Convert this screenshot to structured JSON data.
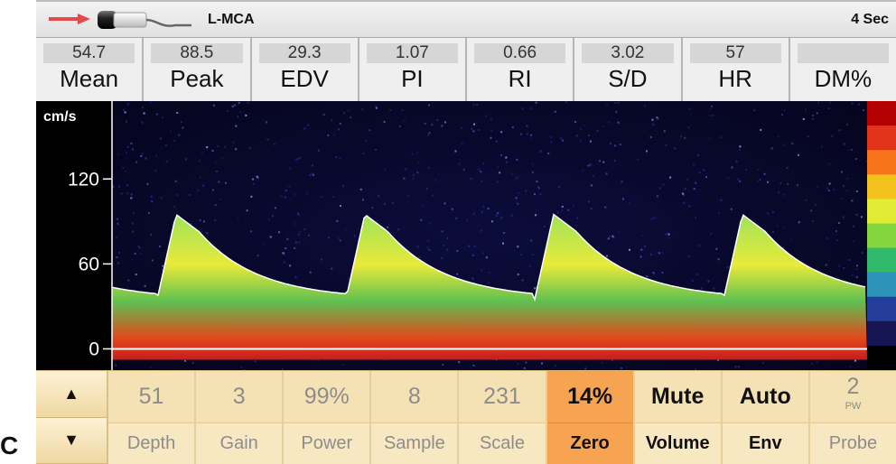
{
  "figure_label": "C",
  "header": {
    "vessel": "L-MCA",
    "sweep": "4 Sec",
    "arrow_color": "#e04a4a"
  },
  "measurements": [
    {
      "value": "54.7",
      "label": "Mean"
    },
    {
      "value": "88.5",
      "label": "Peak"
    },
    {
      "value": "29.3",
      "label": "EDV"
    },
    {
      "value": "1.07",
      "label": "PI"
    },
    {
      "value": "0.66",
      "label": "RI"
    },
    {
      "value": "3.02",
      "label": "S/D"
    },
    {
      "value": "57",
      "label": "HR"
    },
    {
      "value": "",
      "label": "DM%"
    }
  ],
  "spectrum": {
    "unit_label": "cm/s",
    "y_ticks": [
      "120",
      "60",
      "0"
    ],
    "tick_values": [
      120,
      60,
      0
    ],
    "y_range": [
      -15,
      175
    ],
    "beats": 4,
    "color_scale": [
      "#b30000",
      "#e33319",
      "#f7731a",
      "#f3c21c",
      "#e1ec34",
      "#85d63e",
      "#33b96c",
      "#2c92b6",
      "#263e9b",
      "#161655",
      "#000000"
    ]
  },
  "controls": {
    "up_label": "▲",
    "down_label": "▼",
    "buttons": [
      {
        "value": "51",
        "label": "Depth"
      },
      {
        "value": "3",
        "label": "Gain"
      },
      {
        "value": "99%",
        "label": "Power"
      },
      {
        "value": "8",
        "label": "Sample"
      },
      {
        "value": "231",
        "label": "Scale"
      },
      {
        "value": "14%",
        "label": "Zero"
      },
      {
        "value": "Mute",
        "label": "Volume"
      },
      {
        "value": "Auto",
        "label": "Env"
      },
      {
        "value": "2",
        "sub": "PW",
        "label": "Probe"
      }
    ]
  }
}
